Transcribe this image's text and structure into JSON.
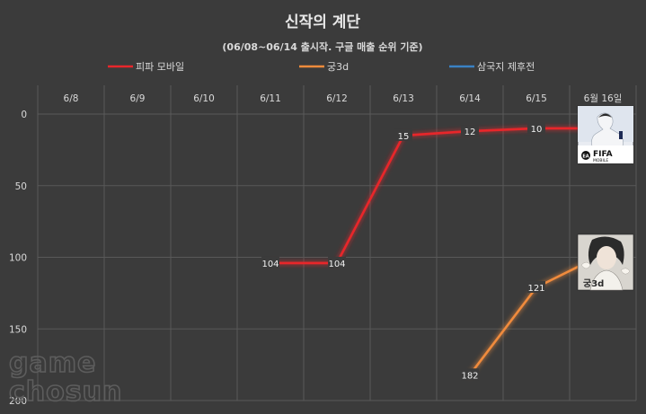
{
  "chart_data": {
    "type": "line",
    "title": "신작의 계단",
    "subtitle": "(06/08~06/14 출시작. 구글 매출 순위 기준)",
    "categories": [
      "6/8",
      "6/9",
      "6/10",
      "6/11",
      "6/12",
      "6/13",
      "6/14",
      "6/15",
      "6월 16일"
    ],
    "y_ticks": [
      0,
      50,
      100,
      150,
      200
    ],
    "ylim": [
      0,
      200
    ],
    "y_reversed": true,
    "grid": true,
    "legend_position": "top",
    "series": [
      {
        "name": "피파 모바일",
        "color": "#e8262b",
        "values": [
          null,
          null,
          null,
          104,
          104,
          15,
          12,
          10,
          10
        ]
      },
      {
        "name": "궁3d",
        "color": "#f08b3c",
        "values": [
          null,
          null,
          null,
          null,
          null,
          null,
          182,
          121,
          98
        ]
      },
      {
        "name": "삼국지 제후전",
        "color": "#3a82c4",
        "values": [
          null,
          null,
          null,
          null,
          null,
          null,
          null,
          null,
          null
        ]
      }
    ]
  },
  "watermark": {
    "line1": "game",
    "line2": "chosun"
  },
  "thumbnails": {
    "fifa": {
      "text_line1": "FIFA",
      "text_line2": "MOBILE",
      "badge": "EA"
    },
    "gung": {
      "text": "궁3d"
    }
  }
}
